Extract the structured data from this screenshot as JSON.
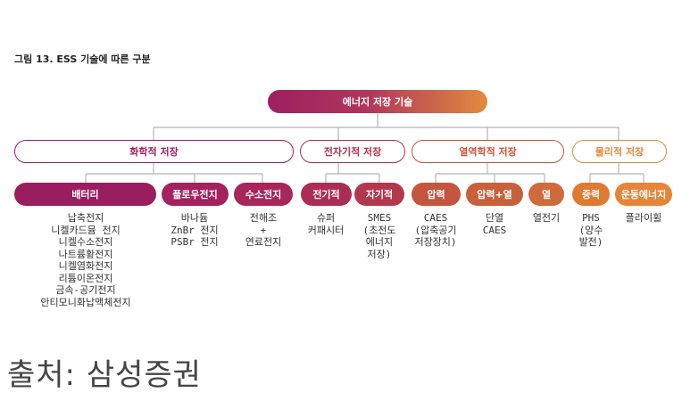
{
  "figure_title": "그림 13. ESS 기술에 따른 구분",
  "root": "에너지 저장 기술",
  "categories": [
    {
      "label": "화학적 저장",
      "color": "#9e1f5f"
    },
    {
      "label": "전자기적 저장",
      "color": "#b03050"
    },
    {
      "label": "열역학적 저장",
      "color": "#c8533a"
    },
    {
      "label": "물리적 저장",
      "color": "#e28a3e"
    }
  ],
  "subs": [
    {
      "label": "배터리",
      "color": "#9a1d5f",
      "leaf": "납축전지\n니켈카드뮴 전지\n니켈수소전지\n나트륨황전지\n니켈염화전지\n리튬이온전지\n금속-공기전지\n안티모니화납액체전지"
    },
    {
      "label": "플로우전지",
      "color": "#a2215e",
      "leaf": "바나듐\nZnBr 전지\nPSBr 전지"
    },
    {
      "label": "수소전지",
      "color": "#a8265c",
      "leaf": "전해조\n+\n연료전지"
    },
    {
      "label": "전기적",
      "color": "#aa2d55",
      "leaf": "슈퍼\n커패시터"
    },
    {
      "label": "자기적",
      "color": "#b3384f",
      "leaf": "SMES\n(초전도\n에너지\n저장)"
    },
    {
      "label": "압력",
      "color": "#c4553f",
      "leaf": "CAES\n(압축공기\n저장장치)"
    },
    {
      "label": "압력+열",
      "color": "#c9603c",
      "leaf": "단열\nCAES"
    },
    {
      "label": "열",
      "color": "#cf6a3b",
      "leaf": "열전기"
    },
    {
      "label": "중력",
      "color": "#e07a30",
      "leaf": "PHS\n(양수\n발전)"
    },
    {
      "label": "운동에너지",
      "color": "#e5853a",
      "leaf": "플라이휠"
    }
  ],
  "source": "출처: 삼성증권"
}
